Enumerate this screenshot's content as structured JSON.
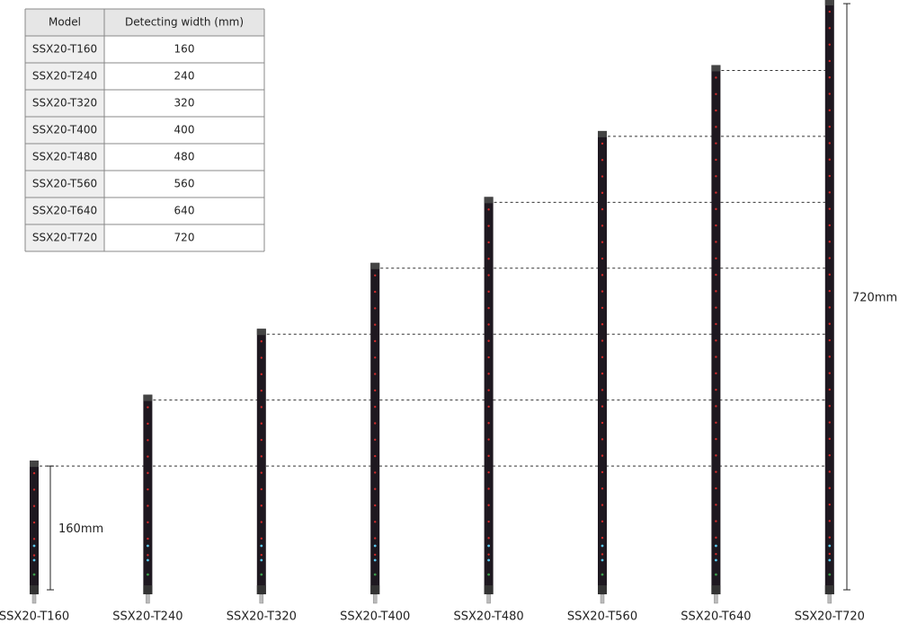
{
  "table": {
    "header": [
      "Model",
      "Detecting width (mm)"
    ],
    "rows": [
      [
        "SSX20-T160",
        160
      ],
      [
        "SSX20-T240",
        240
      ],
      [
        "SSX20-T320",
        320
      ],
      [
        "SSX20-T400",
        400
      ],
      [
        "SSX20-T480",
        480
      ],
      [
        "SSX20-T560",
        560
      ],
      [
        "SSX20-T640",
        640
      ],
      [
        "SSX20-T720",
        720
      ]
    ]
  },
  "dimensions": [
    "160mm",
    "720mm"
  ]
}
